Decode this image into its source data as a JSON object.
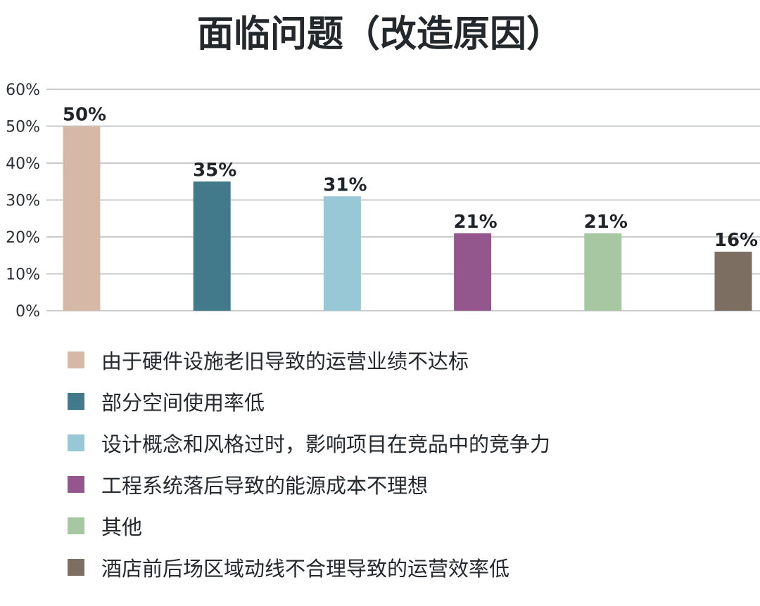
{
  "title": "面临问题（改造原因）",
  "chart_data": {
    "type": "bar",
    "title": "面临问题（改造原因）",
    "categories": [
      "由于硬件设施老旧导致的运营业绩不达标",
      "部分空间使用率低",
      "设计概念和风格过时，影响项目在竞品中的竞争力",
      "工程系统落后导致的能源成本不理想",
      "其他",
      "酒店前后场区域动线不合理导致的运营效率低"
    ],
    "values": [
      50,
      35,
      31,
      21,
      21,
      16
    ],
    "value_labels": [
      "50%",
      "35%",
      "31%",
      "21%",
      "21%",
      "16%"
    ],
    "colors": [
      "#d6b8a6",
      "#437a8b",
      "#98c7d6",
      "#93578d",
      "#a6c7a1",
      "#7d6e62"
    ],
    "y_ticks": [
      0,
      10,
      20,
      30,
      40,
      50,
      60
    ],
    "y_tick_labels": [
      "0%",
      "10%",
      "20%",
      "30%",
      "40%",
      "50%",
      "60%"
    ],
    "ylim": [
      0,
      60
    ],
    "xlabel": "",
    "ylabel": "",
    "grid": true,
    "legend_position": "bottom"
  }
}
